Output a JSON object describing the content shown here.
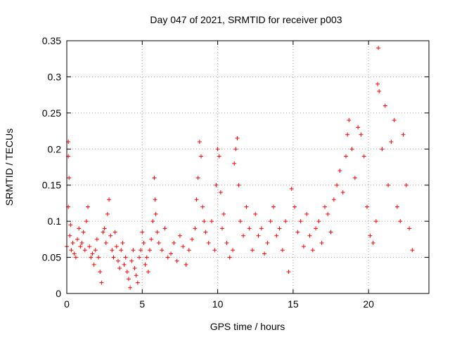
{
  "chart_data": {
    "type": "scatter",
    "title": "Day 047 of 2021, SRMTID for receiver p003",
    "xlabel": "GPS time / hours",
    "ylabel": "SRMTID / TECUs",
    "xlim": [
      0,
      24
    ],
    "ylim": [
      0,
      0.35
    ],
    "x_ticks": [
      0,
      5,
      10,
      15,
      20
    ],
    "x_tick_labels": [
      "0",
      "5",
      "10",
      "15",
      "20"
    ],
    "y_ticks": [
      0,
      0.05,
      0.1,
      0.15,
      0.2,
      0.25,
      0.3,
      0.35
    ],
    "y_tick_labels": [
      "0",
      "0.05",
      "0.1",
      "0.15",
      "0.2",
      "0.25",
      "0.3",
      "0.35"
    ],
    "grid": true,
    "marker": "+",
    "color": "#ff0000",
    "series": [
      {
        "name": "SRMTID",
        "points": [
          [
            0.0,
            0.065
          ],
          [
            0.1,
            0.12
          ],
          [
            0.1,
            0.19
          ],
          [
            0.1,
            0.21
          ],
          [
            0.15,
            0.16
          ],
          [
            0.2,
            0.08
          ],
          [
            0.25,
            0.095
          ],
          [
            0.3,
            0.06
          ],
          [
            0.4,
            0.07
          ],
          [
            0.5,
            0.055
          ],
          [
            0.6,
            0.05
          ],
          [
            0.7,
            0.075
          ],
          [
            0.8,
            0.09
          ],
          [
            0.9,
            0.065
          ],
          [
            1.0,
            0.07
          ],
          [
            1.1,
            0.085
          ],
          [
            1.2,
            0.06
          ],
          [
            1.3,
            0.1
          ],
          [
            1.4,
            0.12
          ],
          [
            1.5,
            0.065
          ],
          [
            1.6,
            0.05
          ],
          [
            1.7,
            0.055
          ],
          [
            1.8,
            0.04
          ],
          [
            1.9,
            0.06
          ],
          [
            2.0,
            0.075
          ],
          [
            2.1,
            0.05
          ],
          [
            2.2,
            0.03
          ],
          [
            2.3,
            0.015
          ],
          [
            2.4,
            0.085
          ],
          [
            2.5,
            0.09
          ],
          [
            2.6,
            0.07
          ],
          [
            2.7,
            0.11
          ],
          [
            2.8,
            0.13
          ],
          [
            2.9,
            0.08
          ],
          [
            3.0,
            0.06
          ],
          [
            3.1,
            0.05
          ],
          [
            3.2,
            0.085
          ],
          [
            3.3,
            0.065
          ],
          [
            3.4,
            0.045
          ],
          [
            3.5,
            0.035
          ],
          [
            3.6,
            0.06
          ],
          [
            3.7,
            0.07
          ],
          [
            3.8,
            0.04
          ],
          [
            3.9,
            0.05
          ],
          [
            4.0,
            0.03
          ],
          [
            4.1,
            0.02
          ],
          [
            4.2,
            0.008
          ],
          [
            4.3,
            0.045
          ],
          [
            4.4,
            0.06
          ],
          [
            4.5,
            0.035
          ],
          [
            4.6,
            0.025
          ],
          [
            4.7,
            0.015
          ],
          [
            4.8,
            0.05
          ],
          [
            4.9,
            0.06
          ],
          [
            5.0,
            0.085
          ],
          [
            5.1,
            0.07
          ],
          [
            5.2,
            0.04
          ],
          [
            5.3,
            0.05
          ],
          [
            5.4,
            0.03
          ],
          [
            5.5,
            0.06
          ],
          [
            5.6,
            0.075
          ],
          [
            5.7,
            0.1
          ],
          [
            5.8,
            0.16
          ],
          [
            5.85,
            0.13
          ],
          [
            5.9,
            0.11
          ],
          [
            6.0,
            0.085
          ],
          [
            6.1,
            0.07
          ],
          [
            6.3,
            0.06
          ],
          [
            6.5,
            0.09
          ],
          [
            6.7,
            0.05
          ],
          [
            6.9,
            0.055
          ],
          [
            7.1,
            0.07
          ],
          [
            7.3,
            0.045
          ],
          [
            7.5,
            0.08
          ],
          [
            7.7,
            0.065
          ],
          [
            7.9,
            0.04
          ],
          [
            8.1,
            0.06
          ],
          [
            8.3,
            0.075
          ],
          [
            8.5,
            0.09
          ],
          [
            8.6,
            0.13
          ],
          [
            8.7,
            0.16
          ],
          [
            8.8,
            0.21
          ],
          [
            8.9,
            0.19
          ],
          [
            9.0,
            0.12
          ],
          [
            9.1,
            0.1
          ],
          [
            9.2,
            0.085
          ],
          [
            9.4,
            0.07
          ],
          [
            9.6,
            0.1
          ],
          [
            9.8,
            0.06
          ],
          [
            9.9,
            0.15
          ],
          [
            10.0,
            0.2
          ],
          [
            10.1,
            0.19
          ],
          [
            10.2,
            0.14
          ],
          [
            10.3,
            0.09
          ],
          [
            10.4,
            0.11
          ],
          [
            10.6,
            0.07
          ],
          [
            10.8,
            0.05
          ],
          [
            11.0,
            0.06
          ],
          [
            11.1,
            0.18
          ],
          [
            11.2,
            0.2
          ],
          [
            11.3,
            0.215
          ],
          [
            11.4,
            0.15
          ],
          [
            11.5,
            0.1
          ],
          [
            11.7,
            0.08
          ],
          [
            11.9,
            0.12
          ],
          [
            12.1,
            0.09
          ],
          [
            12.3,
            0.06
          ],
          [
            12.5,
            0.11
          ],
          [
            12.7,
            0.08
          ],
          [
            12.9,
            0.09
          ],
          [
            13.1,
            0.055
          ],
          [
            13.3,
            0.07
          ],
          [
            13.5,
            0.1
          ],
          [
            13.7,
            0.12
          ],
          [
            13.9,
            0.08
          ],
          [
            14.1,
            0.09
          ],
          [
            14.3,
            0.06
          ],
          [
            14.5,
            0.1
          ],
          [
            14.7,
            0.03
          ],
          [
            14.9,
            0.145
          ],
          [
            15.1,
            0.12
          ],
          [
            15.3,
            0.085
          ],
          [
            15.5,
            0.1
          ],
          [
            15.7,
            0.065
          ],
          [
            15.9,
            0.11
          ],
          [
            16.1,
            0.08
          ],
          [
            16.3,
            0.06
          ],
          [
            16.5,
            0.09
          ],
          [
            16.7,
            0.1
          ],
          [
            16.9,
            0.07
          ],
          [
            17.1,
            0.12
          ],
          [
            17.3,
            0.11
          ],
          [
            17.5,
            0.085
          ],
          [
            17.7,
            0.13
          ],
          [
            17.9,
            0.15
          ],
          [
            18.1,
            0.17
          ],
          [
            18.3,
            0.14
          ],
          [
            18.5,
            0.19
          ],
          [
            18.6,
            0.22
          ],
          [
            18.7,
            0.24
          ],
          [
            18.9,
            0.2
          ],
          [
            19.1,
            0.16
          ],
          [
            19.3,
            0.23
          ],
          [
            19.5,
            0.22
          ],
          [
            19.7,
            0.19
          ],
          [
            19.9,
            0.12
          ],
          [
            20.1,
            0.08
          ],
          [
            20.3,
            0.07
          ],
          [
            20.5,
            0.1
          ],
          [
            20.6,
            0.29
          ],
          [
            20.65,
            0.34
          ],
          [
            20.7,
            0.28
          ],
          [
            20.9,
            0.2
          ],
          [
            21.1,
            0.26
          ],
          [
            21.3,
            0.15
          ],
          [
            21.5,
            0.21
          ],
          [
            21.7,
            0.24
          ],
          [
            21.9,
            0.12
          ],
          [
            22.1,
            0.1
          ],
          [
            22.3,
            0.22
          ],
          [
            22.5,
            0.15
          ],
          [
            22.7,
            0.09
          ],
          [
            22.9,
            0.06
          ]
        ]
      }
    ]
  }
}
